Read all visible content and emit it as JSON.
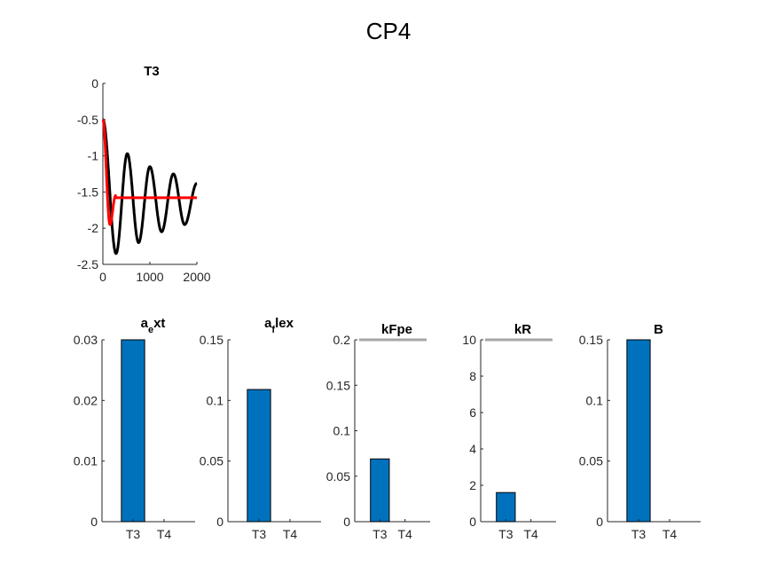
{
  "figure": {
    "title": "CP4"
  },
  "chart_data": [
    {
      "type": "line",
      "title": "T3",
      "xlim": [
        0,
        2000
      ],
      "ylim": [
        -2.5,
        0
      ],
      "xticks": [
        "0",
        "1000",
        "2000"
      ],
      "yticks": [
        "0",
        "-0.5",
        "-1",
        "-1.5",
        "-2",
        "-2.5"
      ],
      "series": [
        {
          "color": "#000000",
          "style": "damped-oscillation",
          "start": -0.5,
          "baseline": -1.6,
          "peaks": [
            [
              280,
              -2.35
            ],
            [
              520,
              -0.97
            ],
            [
              760,
              -2.2
            ],
            [
              1000,
              -1.15
            ],
            [
              1250,
              -2.05
            ],
            [
              1500,
              -1.25
            ],
            [
              1740,
              -1.95
            ],
            [
              2000,
              -1.38
            ]
          ]
        },
        {
          "color": "#ff0000",
          "style": "fast-settling",
          "start": -0.5,
          "baseline": -1.58,
          "peaks": [
            [
              150,
              -1.95
            ],
            [
              270,
              -1.55
            ]
          ]
        }
      ]
    },
    {
      "type": "bar",
      "title": "a_ext",
      "title_parts": {
        "base": "a",
        "sub": "e",
        "rest": "xt"
      },
      "categories": [
        "T3",
        "T4"
      ],
      "values": [
        0.03,
        0
      ],
      "ylim": [
        0,
        0.03
      ],
      "yticks": [
        "0",
        "0.01",
        "0.02",
        "0.03"
      ],
      "bar_color": "#0072BD"
    },
    {
      "type": "bar",
      "title": "a_flex",
      "title_parts": {
        "base": "a",
        "sub": "f",
        "rest": "lex"
      },
      "categories": [
        "T3",
        "T4"
      ],
      "values": [
        0.109,
        0
      ],
      "ylim": [
        0,
        0.15
      ],
      "yticks": [
        "0",
        "0.05",
        "0.1",
        "0.15"
      ],
      "bar_color": "#0072BD"
    },
    {
      "type": "bar",
      "title": "kFpe",
      "categories": [
        "T3",
        "T4"
      ],
      "values": [
        0.069,
        0
      ],
      "ylim": [
        0,
        0.2
      ],
      "yticks": [
        "0",
        "0.05",
        "0.1",
        "0.15",
        "0.2"
      ],
      "reference_line": 0.2,
      "bar_color": "#0072BD"
    },
    {
      "type": "bar",
      "title": "kR",
      "categories": [
        "T3",
        "T4"
      ],
      "values": [
        1.6,
        0
      ],
      "ylim": [
        0,
        10
      ],
      "yticks": [
        "0",
        "2",
        "4",
        "6",
        "8",
        "10"
      ],
      "reference_line": 10,
      "bar_color": "#0072BD"
    },
    {
      "type": "bar",
      "title": "B",
      "categories": [
        "T3",
        "T4"
      ],
      "values": [
        0.15,
        0
      ],
      "ylim": [
        0,
        0.15
      ],
      "yticks": [
        "0",
        "0.05",
        "0.1",
        "0.15"
      ],
      "bar_color": "#0072BD"
    }
  ]
}
